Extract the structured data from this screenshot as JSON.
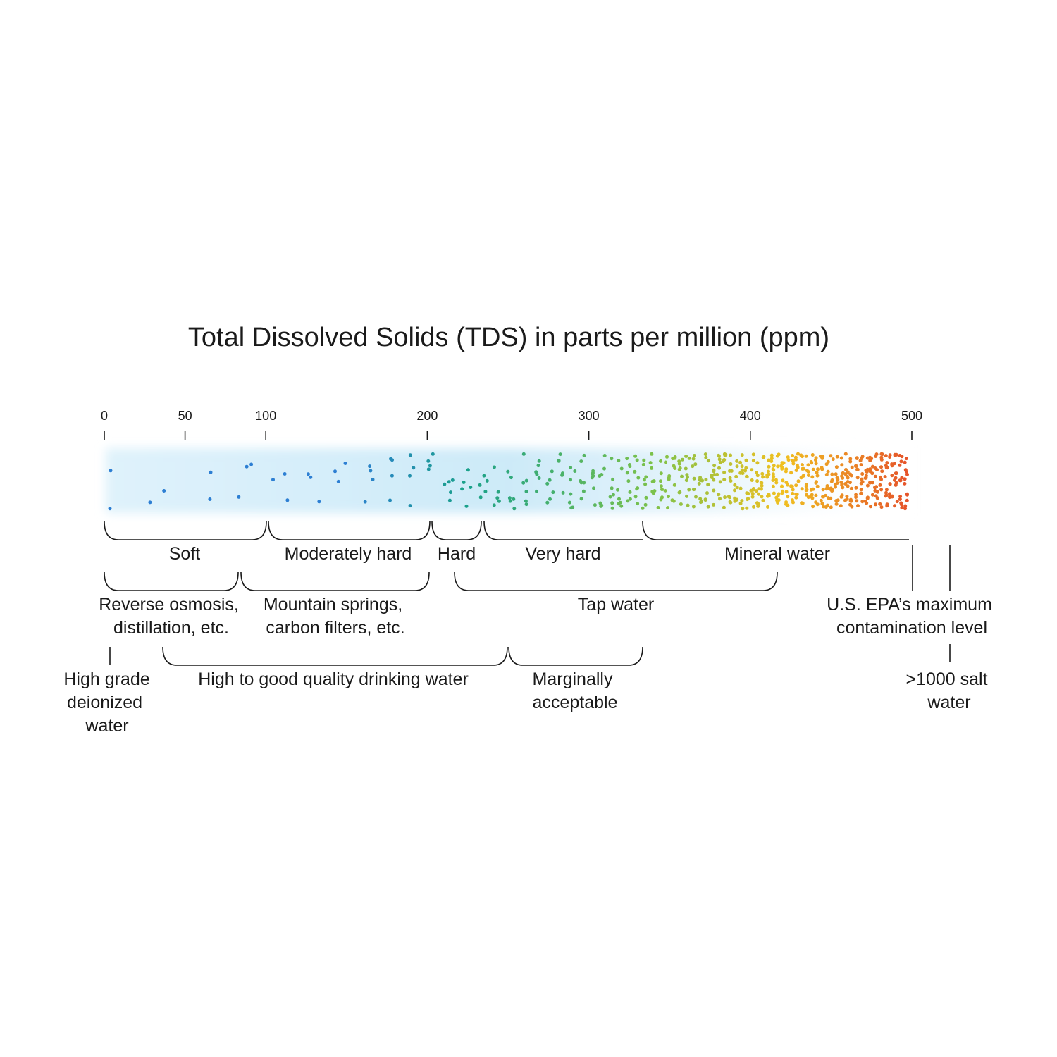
{
  "title": "Total Dissolved Solids (TDS) in parts per million (ppm)",
  "scale": {
    "min": 0,
    "max": 500,
    "ticks": [
      {
        "value": 0,
        "label": "0"
      },
      {
        "value": 50,
        "label": "50"
      },
      {
        "value": 100,
        "label": "100"
      },
      {
        "value": 200,
        "label": "200"
      },
      {
        "value": 300,
        "label": "300"
      },
      {
        "value": 400,
        "label": "400"
      },
      {
        "value": 500,
        "label": "500"
      }
    ]
  },
  "hardness": {
    "soft": "Soft",
    "moderately_hard": "Moderately hard",
    "hard": "Hard",
    "very_hard": "Very hard",
    "mineral_water": "Mineral water"
  },
  "sources": {
    "reverse_osmosis": [
      "Reverse osmosis,",
      "distillation, etc."
    ],
    "mountain_springs": [
      "Mountain springs,",
      "carbon filters, etc."
    ],
    "tap_water": "Tap water",
    "epa": [
      "U.S. EPA’s maximum",
      "contamination level"
    ]
  },
  "quality": {
    "deionized": [
      "High grade",
      "deionized",
      "water"
    ],
    "drinking": "High to good quality drinking water",
    "marginal": [
      "Marginally",
      "acceptable"
    ],
    "salt": [
      ">1000 salt",
      "water"
    ]
  },
  "colors": {
    "low": "#2d7fd3",
    "mid": "#1aa18a",
    "green": "#7cc24a",
    "yellow": "#f0c020",
    "high": "#e5502a",
    "band": "#cfe9f7"
  }
}
